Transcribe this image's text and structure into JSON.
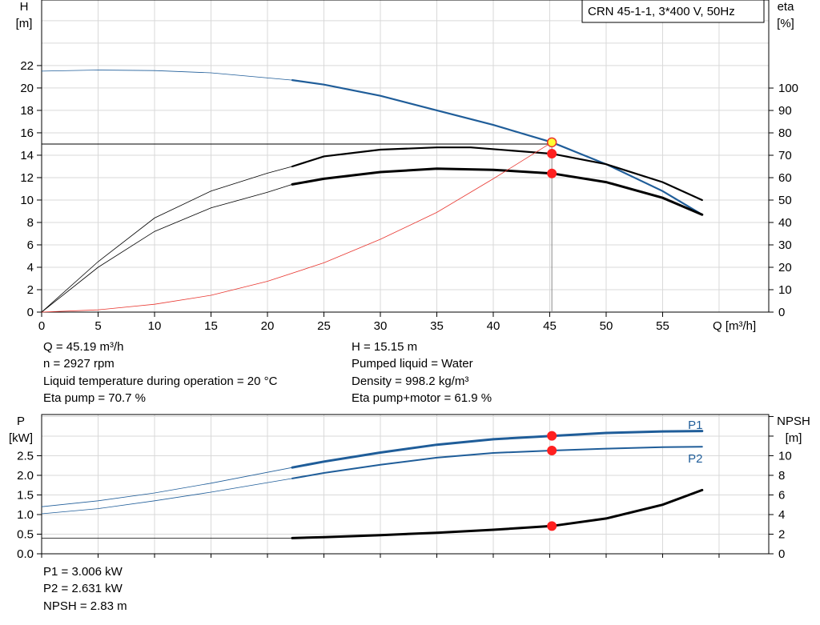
{
  "title": "CRN 45-1-1, 3*400 V, 50Hz",
  "chart_data": [
    {
      "type": "line",
      "x_axis": {
        "label": "Q [m³/h]",
        "range": [
          0,
          64.4
        ],
        "ticks": [
          0,
          5,
          10,
          15,
          20,
          25,
          30,
          35,
          40,
          45,
          50,
          55
        ]
      },
      "y_left": {
        "label_line1": "H",
        "label_line2": "[m]",
        "range": [
          0,
          27.85
        ],
        "ticks": [
          0,
          2,
          4,
          6,
          8,
          10,
          12,
          14,
          16,
          18,
          20,
          22
        ]
      },
      "y_right": {
        "label_line1": "eta",
        "label_line2": "[%]",
        "range": [
          0,
          139.3
        ],
        "ticks": [
          0,
          10,
          20,
          30,
          40,
          50,
          60,
          70,
          80,
          90,
          100
        ]
      },
      "grid": true,
      "series": [
        {
          "id": "H",
          "axis": "left",
          "color": "#1f5d99",
          "thick_from": 22.2,
          "x": [
            0,
            5,
            10,
            15,
            22.2,
            25,
            30,
            35,
            40,
            45.19,
            50,
            55,
            58.5
          ],
          "y": [
            21.5,
            21.6,
            21.55,
            21.35,
            20.7,
            20.3,
            19.3,
            18.0,
            16.7,
            15.15,
            13.2,
            10.8,
            8.7
          ]
        },
        {
          "id": "eta_pump",
          "axis": "right",
          "color": "#000000",
          "thick_from": 22.2,
          "x": [
            0,
            5,
            10,
            15,
            20,
            22.2,
            25,
            30,
            35,
            38,
            45.19,
            50,
            55,
            58.5
          ],
          "y": [
            0,
            22.5,
            42,
            54,
            62,
            65,
            69.5,
            72.5,
            73.5,
            73.5,
            70.7,
            66,
            58,
            50
          ]
        },
        {
          "id": "eta_pump_motor",
          "axis": "right",
          "color": "#000000",
          "thick_from": 22.2,
          "thick_width": 3,
          "x": [
            0,
            5,
            10,
            15,
            20,
            22.2,
            25,
            30,
            35,
            40,
            45.19,
            50,
            55,
            58.5
          ],
          "y": [
            0,
            20,
            36,
            46.5,
            53.5,
            57,
            59.5,
            62.5,
            64,
            63.5,
            61.9,
            58,
            51,
            43.5
          ]
        },
        {
          "id": "system_curve",
          "axis": "left",
          "color": "#e8352e",
          "thin": true,
          "x": [
            0,
            5,
            10,
            15,
            20,
            25,
            30,
            35,
            40,
            45.19
          ],
          "y": [
            0,
            0.2,
            0.7,
            1.5,
            2.75,
            4.4,
            6.5,
            8.9,
            11.9,
            15.15
          ]
        }
      ],
      "reference": {
        "h_line_y": 15.0,
        "v_line_x": 45.19
      },
      "points": [
        {
          "axis": "left",
          "x": 45.19,
          "y": 15.15,
          "fill": "#ffff33",
          "stroke": "#e8352e"
        },
        {
          "axis": "right",
          "x": 45.19,
          "y": 70.7,
          "fill": "#ff2020"
        },
        {
          "axis": "right",
          "x": 45.19,
          "y": 61.9,
          "fill": "#ff2020"
        }
      ]
    },
    {
      "type": "line",
      "x_range": [
        0,
        64.4
      ],
      "y_left": {
        "label_line1": "P",
        "label_line2": "[kW]",
        "range": [
          0,
          3.55
        ],
        "ticks": [
          "0.0",
          "0.5",
          "1.0",
          "1.5",
          "2.0",
          "2.5"
        ]
      },
      "y_right": {
        "label_line1": "NPSH",
        "label_line2": "[m]",
        "range": [
          0,
          14.2
        ],
        "ticks": [
          0,
          2,
          4,
          6,
          8,
          10
        ]
      },
      "grid": true,
      "series": [
        {
          "id": "P1",
          "axis": "left",
          "color": "#1f5d99",
          "thick_from": 22.2,
          "thick_width": 3,
          "x": [
            0,
            5,
            10,
            15,
            22.2,
            25,
            30,
            35,
            40,
            45.19,
            50,
            55,
            58.5
          ],
          "y": [
            1.2,
            1.35,
            1.55,
            1.8,
            2.2,
            2.35,
            2.58,
            2.78,
            2.92,
            3.006,
            3.08,
            3.12,
            3.13
          ]
        },
        {
          "id": "P2",
          "axis": "left",
          "color": "#1f5d99",
          "thick_from": 22.2,
          "x": [
            0,
            5,
            10,
            15,
            22.2,
            25,
            30,
            35,
            40,
            45.19,
            50,
            55,
            58.5
          ],
          "y": [
            1.02,
            1.15,
            1.35,
            1.57,
            1.92,
            2.06,
            2.27,
            2.45,
            2.57,
            2.631,
            2.68,
            2.72,
            2.73
          ]
        },
        {
          "id": "NPSH",
          "axis": "right",
          "color": "#000000",
          "thick_from": 22.2,
          "thick_width": 3,
          "x": [
            0,
            22.2,
            25,
            30,
            35,
            40,
            45.19,
            50,
            55,
            58.5
          ],
          "y": [
            1.6,
            1.6,
            1.7,
            1.9,
            2.15,
            2.45,
            2.83,
            3.6,
            5.0,
            6.5
          ]
        }
      ],
      "series_labels": [
        {
          "text": "P1",
          "x": 57.9,
          "y": 3.28
        },
        {
          "text": "P2",
          "x": 57.9,
          "y": 2.43
        }
      ],
      "points": [
        {
          "axis": "left",
          "x": 45.19,
          "y": 3.006,
          "fill": "#ff2020"
        },
        {
          "axis": "left",
          "x": 45.19,
          "y": 2.631,
          "fill": "#ff2020"
        },
        {
          "axis": "right",
          "x": 45.19,
          "y": 2.83,
          "fill": "#ff2020"
        }
      ]
    }
  ],
  "info_top_left": [
    "Q = 45.19 m³/h",
    "n = 2927 rpm",
    "Liquid temperature during operation = 20 °C",
    "Eta pump = 70.7 %"
  ],
  "info_top_right": [
    "H = 15.15 m",
    "Pumped liquid = Water",
    "Density = 998.2 kg/m³",
    "Eta pump+motor = 61.9 %"
  ],
  "info_bottom": [
    "P1 = 3.006 kW",
    "P2 = 2.631 kW",
    "NPSH = 2.83 m"
  ]
}
